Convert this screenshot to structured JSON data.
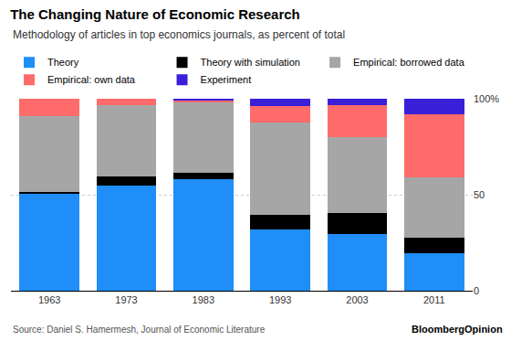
{
  "chart_data": {
    "type": "bar",
    "title": "The Changing Nature of Economic Research",
    "subtitle": "Methodology of articles in top economics journals, as percent of total",
    "source": "Source: Daniel S. Hamermesh, Journal of Economic Literature",
    "annotations": [
      "BloombergOpinion"
    ],
    "categories": [
      "1963",
      "1973",
      "1983",
      "1993",
      "2003",
      "2011"
    ],
    "series": [
      {
        "name": "Theory",
        "color": "#1f8ef8",
        "values": [
          50.5,
          55,
          58,
          32,
          29.5,
          19.5
        ]
      },
      {
        "name": "Theory with simulation",
        "color": "#000000",
        "values": [
          1,
          4.5,
          3.5,
          7.5,
          11,
          8
        ]
      },
      {
        "name": "Empirical: borrowed data",
        "color": "#a6a6a6",
        "values": [
          39.5,
          37,
          36.5,
          48,
          39.5,
          31.5
        ]
      },
      {
        "name": "Empirical: own data",
        "color": "#ff6b6b",
        "values": [
          9,
          3.5,
          1,
          8.5,
          16.5,
          33
        ]
      },
      {
        "name": "Experiment",
        "color": "#3a1fd9",
        "values": [
          0,
          0,
          1,
          4,
          3.5,
          8
        ]
      }
    ],
    "stacked": true,
    "ylim": [
      0,
      100
    ],
    "yticks": [
      0,
      50,
      {
        "value": 100,
        "label": "100%"
      }
    ],
    "grid": true,
    "legend": "top"
  }
}
